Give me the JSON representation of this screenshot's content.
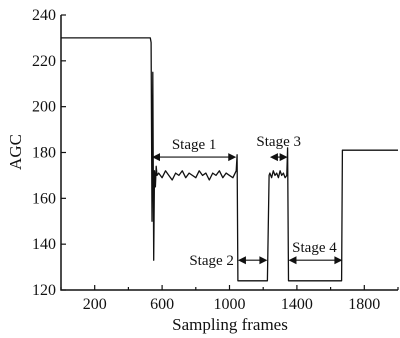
{
  "chart_data": {
    "type": "line",
    "title": "",
    "xlabel": "Sampling frames",
    "ylabel": "AGC",
    "xlim": [
      0,
      2000
    ],
    "ylim": [
      120,
      240
    ],
    "grid": false,
    "x_ticks": [
      200,
      600,
      1000,
      1400,
      1800
    ],
    "x_tick_labels": [
      "200",
      "600",
      "1000",
      "1400",
      "1800"
    ],
    "y_ticks": [
      120,
      140,
      160,
      180,
      200,
      220,
      240
    ],
    "y_tick_labels": [
      "120",
      "140",
      "160",
      "180",
      "200",
      "220",
      "240"
    ],
    "series": [
      {
        "color": "#111111",
        "x": [
          0,
          530,
          535,
          540,
          545,
          550,
          555,
          560,
          565,
          570,
          580,
          600,
          620,
          640,
          660,
          680,
          700,
          720,
          740,
          760,
          780,
          800,
          820,
          840,
          860,
          880,
          900,
          920,
          940,
          960,
          980,
          1000,
          1020,
          1040,
          1045,
          1050,
          1060,
          1100,
          1150,
          1200,
          1220,
          1225,
          1235,
          1240,
          1250,
          1260,
          1270,
          1280,
          1290,
          1300,
          1310,
          1320,
          1330,
          1340,
          1345,
          1350,
          1360,
          1400,
          1450,
          1500,
          1550,
          1600,
          1650,
          1665,
          1670,
          1700,
          1800,
          1900,
          2000
        ],
        "y": [
          230,
          230,
          228,
          150,
          215,
          133,
          172,
          165,
          174,
          170,
          171,
          169,
          172,
          170,
          168,
          171,
          170,
          172,
          169,
          171,
          170,
          169,
          172,
          170,
          171,
          168,
          171,
          170,
          172,
          169,
          171,
          170,
          169,
          172,
          179,
          124,
          124,
          124,
          124,
          124,
          124,
          124,
          170,
          171,
          169,
          172,
          170,
          171,
          169,
          172,
          170,
          171,
          169,
          170,
          182,
          124,
          124,
          124,
          124,
          124,
          124,
          124,
          124,
          124,
          181,
          181,
          181,
          181,
          181
        ]
      }
    ],
    "annotations": [
      {
        "label": "Stage 1",
        "x_from": 540,
        "x_to": 1040,
        "y": 178
      },
      {
        "label": "Stage 2",
        "x_from": 1050,
        "x_to": 1225,
        "y": 133
      },
      {
        "label": "Stage 3",
        "x_from": 1240,
        "x_to": 1345,
        "y": 178
      },
      {
        "label": "Stage 4",
        "x_from": 1350,
        "x_to": 1670,
        "y": 133
      }
    ]
  }
}
